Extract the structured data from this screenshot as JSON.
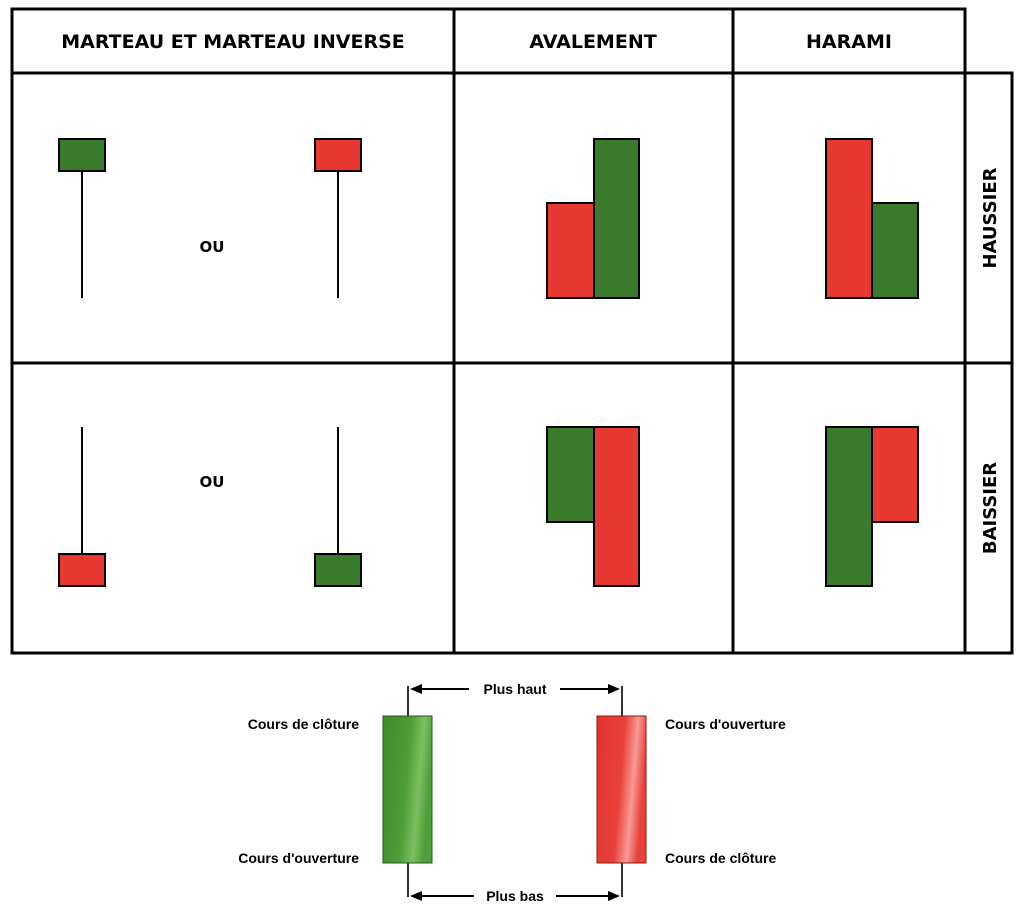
{
  "table": {
    "headers": {
      "hammer": "MARTEAU ET MARTEAU INVERSE",
      "engulfing": "AVALEMENT",
      "harami": "HARAMI"
    },
    "rows": {
      "bullish": "HAUSSIER",
      "bearish": "BAISSIER"
    },
    "connector_bullish": "OU",
    "connector_bearish": "OU"
  },
  "legend": {
    "high_label": "Plus haut",
    "low_label": "Plus bas",
    "green_top_label": "Cours de clôture",
    "green_bottom_label": "Cours d'ouverture",
    "red_top_label": "Cours d'ouverture",
    "red_bottom_label": "Cours de clôture"
  },
  "colors": {
    "bullish_green": "#3a7a2c",
    "bearish_red": "#e83832",
    "legend_green": "#4e9a36",
    "legend_red": "#e63a30"
  }
}
